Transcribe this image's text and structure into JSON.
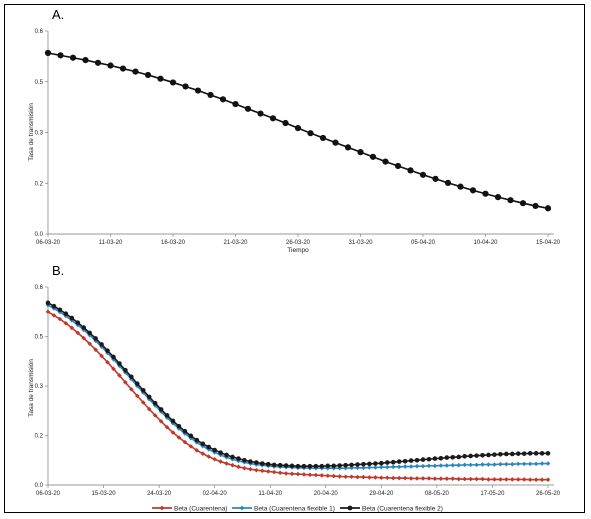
{
  "chart_data": [
    {
      "panel": "A.",
      "type": "line",
      "xlabel": "Tiempo",
      "ylabel": "Tasa de transmisión",
      "ylim": [
        0,
        0.6
      ],
      "yticks": [
        "0.0",
        "0.2",
        "0.3",
        "0.5",
        "0.6"
      ],
      "ytick_values": [
        0,
        0.15,
        0.3,
        0.45,
        0.6
      ],
      "xticks": [
        "06-03-20",
        "11-03-20",
        "16-03-20",
        "21-03-20",
        "26-03-20",
        "31-03-20",
        "05-04-20",
        "10-04-20",
        "15-04-20"
      ],
      "grid": false,
      "series": [
        {
          "color": "#111111",
          "marker": "circle",
          "values": [
            0.535,
            0.528,
            0.521,
            0.514,
            0.506,
            0.498,
            0.489,
            0.48,
            0.47,
            0.459,
            0.448,
            0.436,
            0.424,
            0.411,
            0.398,
            0.384,
            0.37,
            0.356,
            0.342,
            0.328,
            0.313,
            0.298,
            0.284,
            0.27,
            0.256,
            0.242,
            0.228,
            0.214,
            0.201,
            0.188,
            0.175,
            0.163,
            0.151,
            0.14,
            0.129,
            0.119,
            0.109,
            0.1,
            0.091,
            0.083,
            0.076
          ]
        }
      ]
    },
    {
      "panel": "B.",
      "type": "line",
      "ylabel": "Tasa de transmisión",
      "ylim": [
        0,
        0.6
      ],
      "yticks": [
        "0.0",
        "0.2",
        "0.3",
        "0.5",
        "0.6"
      ],
      "ytick_values": [
        0,
        0.15,
        0.3,
        0.45,
        0.6
      ],
      "xticks": [
        "06-03-20",
        "15-03-20",
        "24-03-20",
        "02-04-20",
        "11-04-20",
        "20-04-20",
        "29-04-20",
        "08-05-20",
        "17-05-20",
        "26-05-20"
      ],
      "legend_position": "bottom",
      "grid": false,
      "series": [
        {
          "name": "Beta (Cuarentena)",
          "color": "#c0392b",
          "marker": "diamond",
          "values": [
            0.525,
            0.514,
            0.503,
            0.49,
            0.476,
            0.461,
            0.445,
            0.428,
            0.41,
            0.391,
            0.372,
            0.352,
            0.332,
            0.311,
            0.29,
            0.27,
            0.25,
            0.23,
            0.211,
            0.193,
            0.175,
            0.159,
            0.144,
            0.13,
            0.117,
            0.105,
            0.095,
            0.086,
            0.078,
            0.071,
            0.065,
            0.06,
            0.055,
            0.051,
            0.048,
            0.045,
            0.043,
            0.041,
            0.039,
            0.037,
            0.035,
            0.034,
            0.033,
            0.032,
            0.031,
            0.03,
            0.029,
            0.028,
            0.027,
            0.026,
            0.025,
            0.025,
            0.024,
            0.024,
            0.023,
            0.023,
            0.022,
            0.022,
            0.021,
            0.021,
            0.021,
            0.02,
            0.02,
            0.02,
            0.02,
            0.019,
            0.019,
            0.019,
            0.019,
            0.018,
            0.018,
            0.018,
            0.018,
            0.018,
            0.017,
            0.017,
            0.017,
            0.017,
            0.017,
            0.017,
            0.017,
            0.016,
            0.016,
            0.016,
            0.016
          ]
        },
        {
          "name": "Beta (Cuarentena flexible 1)",
          "color": "#2e86c1",
          "marker": "diamond",
          "values": [
            0.545,
            0.535,
            0.524,
            0.512,
            0.499,
            0.485,
            0.47,
            0.454,
            0.437,
            0.419,
            0.4,
            0.381,
            0.361,
            0.341,
            0.321,
            0.3,
            0.28,
            0.26,
            0.241,
            0.222,
            0.204,
            0.187,
            0.171,
            0.156,
            0.142,
            0.129,
            0.118,
            0.108,
            0.099,
            0.091,
            0.084,
            0.078,
            0.073,
            0.069,
            0.065,
            0.062,
            0.06,
            0.058,
            0.056,
            0.055,
            0.054,
            0.053,
            0.052,
            0.052,
            0.051,
            0.051,
            0.051,
            0.051,
            0.051,
            0.051,
            0.051,
            0.052,
            0.052,
            0.052,
            0.053,
            0.053,
            0.054,
            0.054,
            0.055,
            0.055,
            0.056,
            0.056,
            0.057,
            0.057,
            0.058,
            0.058,
            0.059,
            0.059,
            0.06,
            0.06,
            0.061,
            0.061,
            0.061,
            0.062,
            0.062,
            0.062,
            0.063,
            0.063,
            0.063,
            0.064,
            0.064,
            0.064,
            0.064,
            0.065,
            0.065
          ]
        },
        {
          "name": "Beta (Cuarentena flexible 2)",
          "color": "#1a1a1a",
          "marker": "circle",
          "values": [
            0.552,
            0.542,
            0.531,
            0.519,
            0.506,
            0.492,
            0.477,
            0.461,
            0.444,
            0.426,
            0.407,
            0.388,
            0.368,
            0.348,
            0.328,
            0.307,
            0.287,
            0.267,
            0.248,
            0.229,
            0.211,
            0.194,
            0.178,
            0.163,
            0.149,
            0.136,
            0.125,
            0.115,
            0.106,
            0.098,
            0.091,
            0.085,
            0.08,
            0.075,
            0.071,
            0.068,
            0.065,
            0.063,
            0.061,
            0.06,
            0.059,
            0.058,
            0.057,
            0.057,
            0.057,
            0.057,
            0.057,
            0.058,
            0.058,
            0.059,
            0.06,
            0.061,
            0.062,
            0.063,
            0.064,
            0.065,
            0.066,
            0.068,
            0.069,
            0.071,
            0.072,
            0.074,
            0.075,
            0.077,
            0.078,
            0.08,
            0.081,
            0.083,
            0.084,
            0.085,
            0.087,
            0.088,
            0.089,
            0.09,
            0.091,
            0.092,
            0.093,
            0.094,
            0.094,
            0.095,
            0.095,
            0.096,
            0.096,
            0.096,
            0.096
          ]
        }
      ]
    }
  ]
}
